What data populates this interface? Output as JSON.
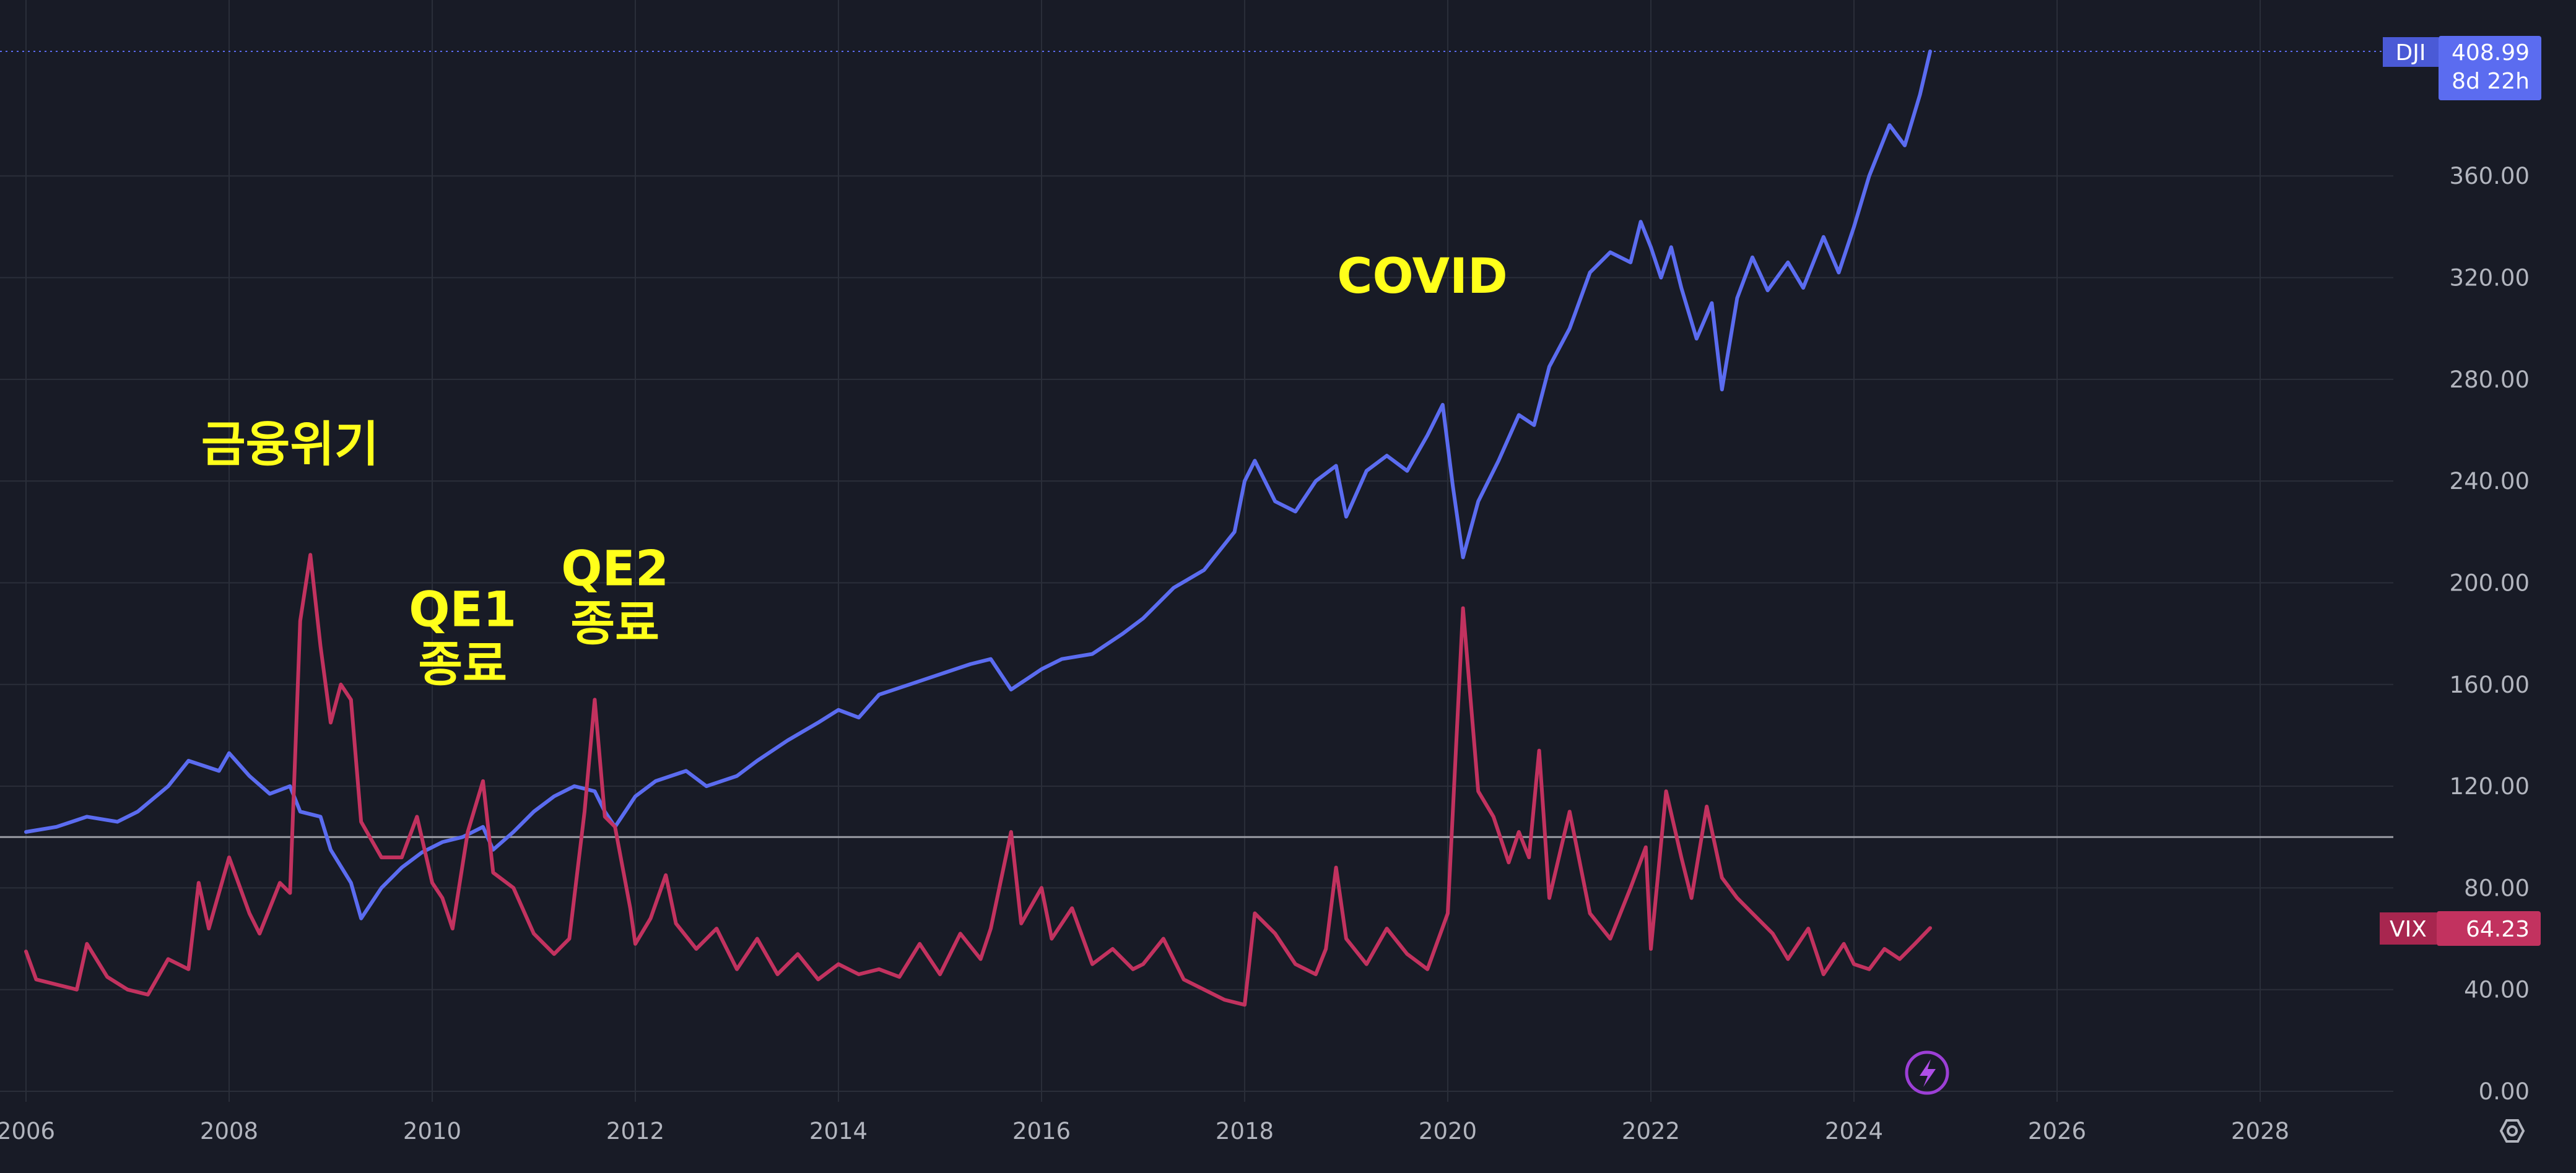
{
  "chart_data": {
    "type": "line",
    "y_range": [
      0,
      410
    ],
    "x_range": [
      2005.95,
      2029.8
    ],
    "y_ticks": [
      "0.00",
      "40.00",
      "80.00",
      "120.00",
      "160.00",
      "200.00",
      "240.00",
      "280.00",
      "320.00",
      "360.00"
    ],
    "x_ticks": [
      "2006",
      "2008",
      "2010",
      "2012",
      "2014",
      "2016",
      "2018",
      "2020",
      "2022",
      "2024",
      "2026",
      "2028"
    ],
    "baseline": 100,
    "grid": true,
    "series": [
      {
        "name": "DJI",
        "color": "#5b6cf0",
        "last_value": "408.99",
        "countdown": "8d 22h",
        "points": [
          [
            2006.0,
            102
          ],
          [
            2006.3,
            104
          ],
          [
            2006.6,
            108
          ],
          [
            2006.9,
            106
          ],
          [
            2007.1,
            110
          ],
          [
            2007.4,
            120
          ],
          [
            2007.6,
            130
          ],
          [
            2007.9,
            126
          ],
          [
            2008.0,
            133
          ],
          [
            2008.2,
            124
          ],
          [
            2008.4,
            117
          ],
          [
            2008.6,
            120
          ],
          [
            2008.7,
            110
          ],
          [
            2008.9,
            108
          ],
          [
            2009.0,
            95
          ],
          [
            2009.2,
            82
          ],
          [
            2009.3,
            68
          ],
          [
            2009.5,
            80
          ],
          [
            2009.7,
            88
          ],
          [
            2009.9,
            94
          ],
          [
            2010.1,
            98
          ],
          [
            2010.3,
            100
          ],
          [
            2010.5,
            104
          ],
          [
            2010.6,
            95
          ],
          [
            2010.8,
            102
          ],
          [
            2011.0,
            110
          ],
          [
            2011.2,
            116
          ],
          [
            2011.4,
            120
          ],
          [
            2011.6,
            118
          ],
          [
            2011.7,
            110
          ],
          [
            2011.8,
            104
          ],
          [
            2012.0,
            116
          ],
          [
            2012.2,
            122
          ],
          [
            2012.5,
            126
          ],
          [
            2012.7,
            120
          ],
          [
            2013.0,
            124
          ],
          [
            2013.2,
            130
          ],
          [
            2013.5,
            138
          ],
          [
            2013.8,
            145
          ],
          [
            2014.0,
            150
          ],
          [
            2014.2,
            147
          ],
          [
            2014.4,
            156
          ],
          [
            2014.7,
            160
          ],
          [
            2015.0,
            164
          ],
          [
            2015.3,
            168
          ],
          [
            2015.5,
            170
          ],
          [
            2015.7,
            158
          ],
          [
            2016.0,
            166
          ],
          [
            2016.2,
            170
          ],
          [
            2016.5,
            172
          ],
          [
            2016.8,
            180
          ],
          [
            2017.0,
            186
          ],
          [
            2017.3,
            198
          ],
          [
            2017.6,
            205
          ],
          [
            2017.9,
            220
          ],
          [
            2018.0,
            240
          ],
          [
            2018.1,
            248
          ],
          [
            2018.3,
            232
          ],
          [
            2018.5,
            228
          ],
          [
            2018.7,
            240
          ],
          [
            2018.9,
            246
          ],
          [
            2019.0,
            226
          ],
          [
            2019.2,
            244
          ],
          [
            2019.4,
            250
          ],
          [
            2019.6,
            244
          ],
          [
            2019.8,
            258
          ],
          [
            2019.95,
            270
          ],
          [
            2020.05,
            238
          ],
          [
            2020.15,
            210
          ],
          [
            2020.3,
            232
          ],
          [
            2020.5,
            248
          ],
          [
            2020.7,
            266
          ],
          [
            2020.85,
            262
          ],
          [
            2021.0,
            285
          ],
          [
            2021.2,
            300
          ],
          [
            2021.4,
            322
          ],
          [
            2021.6,
            330
          ],
          [
            2021.8,
            326
          ],
          [
            2021.9,
            342
          ],
          [
            2022.0,
            332
          ],
          [
            2022.1,
            320
          ],
          [
            2022.2,
            332
          ],
          [
            2022.3,
            316
          ],
          [
            2022.45,
            296
          ],
          [
            2022.6,
            310
          ],
          [
            2022.7,
            276
          ],
          [
            2022.85,
            312
          ],
          [
            2023.0,
            328
          ],
          [
            2023.15,
            315
          ],
          [
            2023.35,
            326
          ],
          [
            2023.5,
            316
          ],
          [
            2023.7,
            336
          ],
          [
            2023.85,
            322
          ],
          [
            2024.0,
            340
          ],
          [
            2024.15,
            360
          ],
          [
            2024.35,
            380
          ],
          [
            2024.5,
            372
          ],
          [
            2024.65,
            392
          ],
          [
            2024.75,
            408.99
          ]
        ]
      },
      {
        "name": "VIX",
        "color": "#c2325f",
        "last_value": "64.23",
        "points": [
          [
            2006.0,
            55
          ],
          [
            2006.1,
            44
          ],
          [
            2006.3,
            42
          ],
          [
            2006.5,
            40
          ],
          [
            2006.6,
            58
          ],
          [
            2006.8,
            45
          ],
          [
            2007.0,
            40
          ],
          [
            2007.2,
            38
          ],
          [
            2007.4,
            52
          ],
          [
            2007.6,
            48
          ],
          [
            2007.7,
            82
          ],
          [
            2007.8,
            64
          ],
          [
            2008.0,
            92
          ],
          [
            2008.2,
            70
          ],
          [
            2008.3,
            62
          ],
          [
            2008.5,
            82
          ],
          [
            2008.6,
            78
          ],
          [
            2008.7,
            185
          ],
          [
            2008.8,
            211
          ],
          [
            2008.9,
            175
          ],
          [
            2009.0,
            145
          ],
          [
            2009.1,
            160
          ],
          [
            2009.2,
            154
          ],
          [
            2009.3,
            106
          ],
          [
            2009.5,
            92
          ],
          [
            2009.7,
            92
          ],
          [
            2009.85,
            108
          ],
          [
            2010.0,
            82
          ],
          [
            2010.1,
            76
          ],
          [
            2010.2,
            64
          ],
          [
            2010.35,
            102
          ],
          [
            2010.5,
            122
          ],
          [
            2010.6,
            86
          ],
          [
            2010.8,
            80
          ],
          [
            2011.0,
            62
          ],
          [
            2011.2,
            54
          ],
          [
            2011.35,
            60
          ],
          [
            2011.5,
            110
          ],
          [
            2011.6,
            154
          ],
          [
            2011.7,
            108
          ],
          [
            2011.8,
            104
          ],
          [
            2011.95,
            72
          ],
          [
            2012.0,
            58
          ],
          [
            2012.15,
            68
          ],
          [
            2012.3,
            85
          ],
          [
            2012.4,
            66
          ],
          [
            2012.6,
            56
          ],
          [
            2012.8,
            64
          ],
          [
            2013.0,
            48
          ],
          [
            2013.2,
            60
          ],
          [
            2013.4,
            46
          ],
          [
            2013.6,
            54
          ],
          [
            2013.8,
            44
          ],
          [
            2014.0,
            50
          ],
          [
            2014.2,
            46
          ],
          [
            2014.4,
            48
          ],
          [
            2014.6,
            45
          ],
          [
            2014.8,
            58
          ],
          [
            2015.0,
            46
          ],
          [
            2015.2,
            62
          ],
          [
            2015.4,
            52
          ],
          [
            2015.5,
            64
          ],
          [
            2015.7,
            102
          ],
          [
            2015.8,
            66
          ],
          [
            2016.0,
            80
          ],
          [
            2016.1,
            60
          ],
          [
            2016.3,
            72
          ],
          [
            2016.5,
            50
          ],
          [
            2016.7,
            56
          ],
          [
            2016.9,
            48
          ],
          [
            2017.0,
            50
          ],
          [
            2017.2,
            60
          ],
          [
            2017.4,
            44
          ],
          [
            2017.6,
            40
          ],
          [
            2017.8,
            36
          ],
          [
            2018.0,
            34
          ],
          [
            2018.1,
            70
          ],
          [
            2018.3,
            62
          ],
          [
            2018.5,
            50
          ],
          [
            2018.7,
            46
          ],
          [
            2018.8,
            56
          ],
          [
            2018.9,
            88
          ],
          [
            2019.0,
            60
          ],
          [
            2019.2,
            50
          ],
          [
            2019.4,
            64
          ],
          [
            2019.6,
            54
          ],
          [
            2019.8,
            48
          ],
          [
            2020.0,
            70
          ],
          [
            2020.1,
            150
          ],
          [
            2020.15,
            190
          ],
          [
            2020.3,
            118
          ],
          [
            2020.45,
            108
          ],
          [
            2020.6,
            90
          ],
          [
            2020.7,
            102
          ],
          [
            2020.8,
            92
          ],
          [
            2020.9,
            134
          ],
          [
            2021.0,
            76
          ],
          [
            2021.2,
            110
          ],
          [
            2021.4,
            70
          ],
          [
            2021.6,
            60
          ],
          [
            2021.8,
            80
          ],
          [
            2021.95,
            96
          ],
          [
            2022.0,
            56
          ],
          [
            2022.15,
            118
          ],
          [
            2022.3,
            92
          ],
          [
            2022.4,
            76
          ],
          [
            2022.55,
            112
          ],
          [
            2022.7,
            84
          ],
          [
            2022.85,
            76
          ],
          [
            2023.0,
            70
          ],
          [
            2023.2,
            62
          ],
          [
            2023.35,
            52
          ],
          [
            2023.55,
            64
          ],
          [
            2023.7,
            46
          ],
          [
            2023.9,
            58
          ],
          [
            2024.0,
            50
          ],
          [
            2024.15,
            48
          ],
          [
            2024.3,
            56
          ],
          [
            2024.45,
            52
          ],
          [
            2024.6,
            58
          ],
          [
            2024.75,
            64.23
          ]
        ]
      }
    ],
    "annotations": [
      {
        "lines": [
          "금융위기"
        ],
        "x": 2008.6,
        "y": 248
      },
      {
        "lines": [
          "QE1",
          "종료"
        ],
        "x": 2010.3,
        "y": 183
      },
      {
        "lines": [
          "QE2",
          "종료"
        ],
        "x": 2011.8,
        "y": 199
      },
      {
        "lines": [
          "COVID"
        ],
        "x": 2019.75,
        "y": 314
      }
    ]
  },
  "ui": {
    "lightning_icon": "lightning-icon",
    "settings_icon": "hexagon-settings-icon"
  }
}
